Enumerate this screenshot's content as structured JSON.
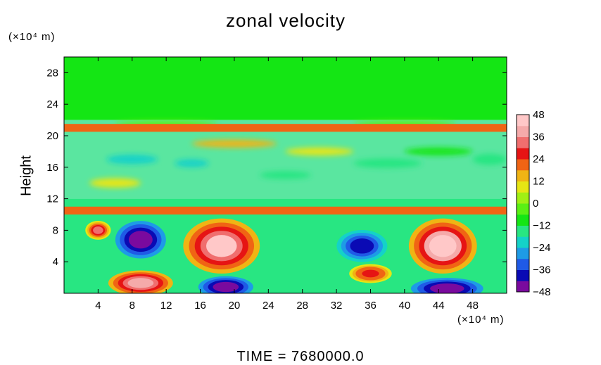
{
  "chart_data": {
    "type": "heatmap",
    "title": "zonal velocity",
    "xlabel": "",
    "ylabel": "Height",
    "x_unit_label": "(×10⁴ m)",
    "y_unit_label": "(×10⁴ m)",
    "footer": "TIME  =  7680000.0",
    "xlim": [
      0,
      52
    ],
    "ylim": [
      0,
      30
    ],
    "xticks": [
      4,
      8,
      12,
      16,
      20,
      24,
      28,
      32,
      36,
      40,
      44,
      48
    ],
    "yticks": [
      4,
      8,
      12,
      16,
      20,
      24,
      28
    ],
    "colorbar": {
      "range": [
        -48,
        48
      ],
      "ticks": [
        48,
        36,
        24,
        12,
        0,
        -12,
        -24,
        -36,
        -48
      ],
      "colors": [
        "#7a0a9e",
        "#0a0ab4",
        "#1f5ae6",
        "#1e9be6",
        "#14d2c8",
        "#28e682",
        "#14e614",
        "#5af014",
        "#a0f014",
        "#e6e614",
        "#f0b414",
        "#f06414",
        "#e61414",
        "#f06e6e",
        "#f5aaaa",
        "#ffc8c8"
      ]
    },
    "features": [
      {
        "kind": "jet",
        "x": [
          0,
          52
        ],
        "y": [
          20.5,
          21.5
        ],
        "value": 18
      },
      {
        "kind": "jet",
        "x": [
          0,
          52
        ],
        "y": [
          10,
          11
        ],
        "value": 20
      },
      {
        "kind": "cell",
        "center": [
          9,
          6.8
        ],
        "radius": [
          3.5,
          2.8
        ],
        "value": -48
      },
      {
        "kind": "cell",
        "center": [
          18.5,
          6
        ],
        "radius": [
          4.5,
          3.5
        ],
        "value": 42
      },
      {
        "kind": "cell",
        "center": [
          35,
          6
        ],
        "radius": [
          3.5,
          2.4
        ],
        "value": -38
      },
      {
        "kind": "cell",
        "center": [
          44.5,
          6
        ],
        "radius": [
          4,
          3.5
        ],
        "value": 44
      },
      {
        "kind": "cell",
        "center": [
          9,
          1.3
        ],
        "radius": [
          3.8,
          1.6
        ],
        "value": 40
      },
      {
        "kind": "cell",
        "center": [
          19,
          0.8
        ],
        "radius": [
          3.8,
          1.6
        ],
        "value": -48
      },
      {
        "kind": "cell",
        "center": [
          45,
          0.6
        ],
        "radius": [
          5,
          1.6
        ],
        "value": -48
      },
      {
        "kind": "cell",
        "center": [
          4,
          8
        ],
        "radius": [
          1.5,
          1.2
        ],
        "value": 32
      },
      {
        "kind": "cell",
        "center": [
          36,
          2.5
        ],
        "radius": [
          2.5,
          1.2
        ],
        "value": 28
      }
    ]
  }
}
